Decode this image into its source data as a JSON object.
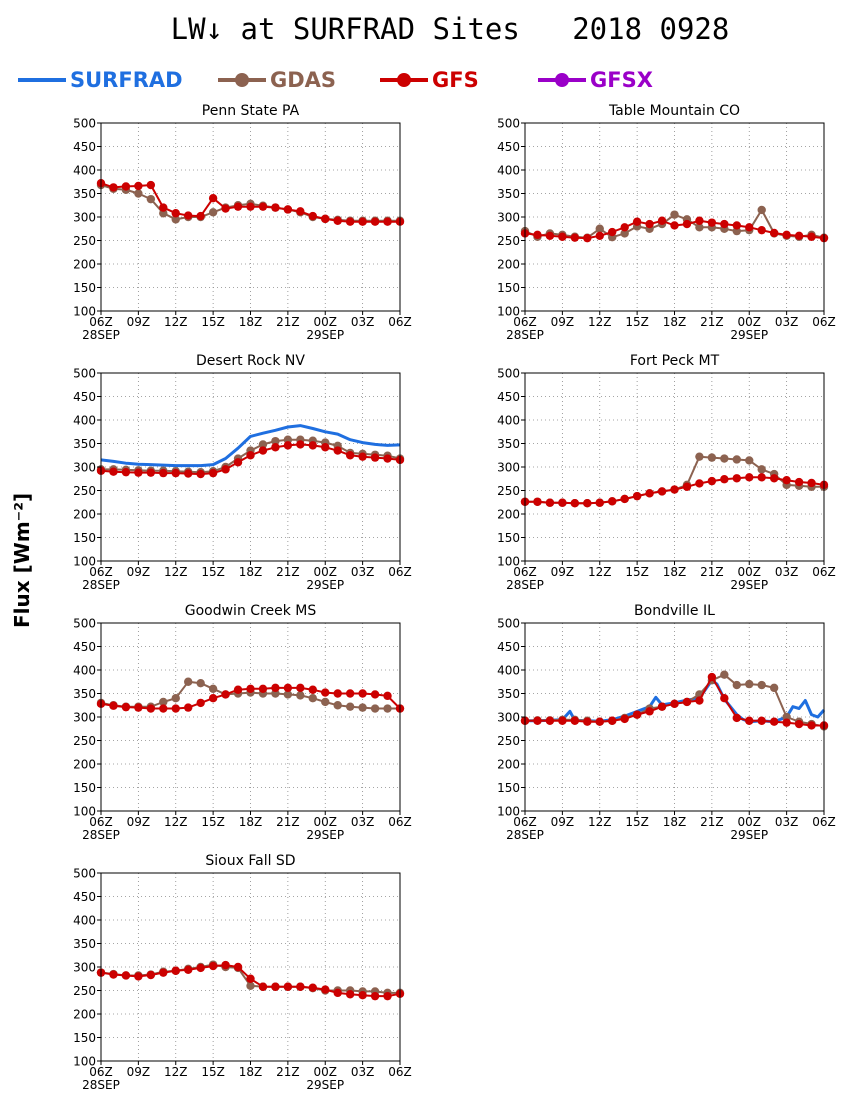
{
  "title": "LW↓ at SURFRAD Sites   2018 0928",
  "ylabel": "Flux [Wm⁻²]",
  "legend": [
    {
      "name": "SURFRAD",
      "color": "#1f6fe0",
      "marker": false
    },
    {
      "name": "GDAS",
      "color": "#8c6250",
      "marker": true
    },
    {
      "name": "GFS",
      "color": "#cc0000",
      "marker": true
    },
    {
      "name": "GFSX",
      "color": "#9a00c8",
      "marker": true
    }
  ],
  "colors": {
    "SURFRAD": "#1f6fe0",
    "GDAS": "#8c6250",
    "GFS": "#cc0000",
    "GFSX": "#9a00c8"
  },
  "axis": {
    "ylim": [
      100,
      500
    ],
    "yticks": [
      100,
      150,
      200,
      250,
      300,
      350,
      400,
      450,
      500
    ],
    "xlim": [
      0,
      24
    ],
    "xtick_hours": [
      0,
      3,
      6,
      9,
      12,
      15,
      18,
      21,
      24
    ],
    "xtick_labels": [
      "06Z",
      "09Z",
      "12Z",
      "15Z",
      "18Z",
      "21Z",
      "00Z",
      "03Z",
      "06Z"
    ],
    "date_labels": [
      {
        "hour": 0,
        "text": "28SEP"
      },
      {
        "hour": 18,
        "text": "29SEP"
      }
    ],
    "grid": true
  },
  "chart_data": [
    {
      "type": "line",
      "title": "Penn State PA",
      "series": [
        {
          "name": "SURFRAD",
          "x": [],
          "values": []
        },
        {
          "name": "GDAS",
          "x": [
            0,
            1,
            2,
            3,
            4,
            5,
            6,
            7,
            8,
            9,
            10,
            11,
            12,
            13,
            14,
            15,
            16,
            17,
            18,
            19,
            20,
            21,
            22,
            23,
            24
          ],
          "values": [
            368,
            360,
            358,
            350,
            338,
            308,
            295,
            300,
            300,
            310,
            320,
            325,
            328,
            324,
            320,
            316,
            310,
            300,
            296,
            294,
            292,
            292,
            292,
            292,
            292
          ]
        },
        {
          "name": "GFS",
          "x": [
            0,
            1,
            2,
            3,
            4,
            5,
            6,
            7,
            8,
            9,
            10,
            11,
            12,
            13,
            14,
            15,
            16,
            17,
            18,
            19,
            20,
            21,
            22,
            23,
            24
          ],
          "values": [
            372,
            363,
            365,
            366,
            368,
            320,
            308,
            303,
            302,
            340,
            318,
            322,
            322,
            322,
            320,
            316,
            312,
            302,
            296,
            292,
            290,
            290,
            290,
            290,
            290
          ]
        }
      ]
    },
    {
      "type": "line",
      "title": "Table Mountain CO",
      "series": [
        {
          "name": "SURFRAD",
          "x": [],
          "values": []
        },
        {
          "name": "GDAS",
          "x": [
            0,
            1,
            2,
            3,
            4,
            5,
            6,
            7,
            8,
            9,
            10,
            11,
            12,
            13,
            14,
            15,
            16,
            17,
            18,
            19,
            20,
            21,
            22,
            23,
            24
          ],
          "values": [
            270,
            258,
            265,
            262,
            258,
            256,
            275,
            257,
            265,
            280,
            275,
            285,
            305,
            295,
            278,
            278,
            275,
            270,
            272,
            315,
            265,
            260,
            258,
            262,
            256
          ]
        },
        {
          "name": "GFS",
          "x": [
            0,
            1,
            2,
            3,
            4,
            5,
            6,
            7,
            8,
            9,
            10,
            11,
            12,
            13,
            14,
            15,
            16,
            17,
            18,
            19,
            20,
            21,
            22,
            23,
            24
          ],
          "values": [
            265,
            262,
            260,
            258,
            256,
            255,
            260,
            268,
            278,
            290,
            285,
            292,
            282,
            285,
            292,
            288,
            285,
            282,
            278,
            272,
            266,
            262,
            260,
            258,
            255
          ]
        }
      ]
    },
    {
      "type": "line",
      "title": "Desert Rock NV",
      "series": [
        {
          "name": "SURFRAD",
          "x": [
            0,
            1,
            2,
            3,
            4,
            5,
            6,
            7,
            8,
            9,
            10,
            11,
            12,
            13,
            14,
            15,
            16,
            17,
            18,
            19,
            20,
            21,
            22,
            23,
            24
          ],
          "values": [
            315,
            312,
            308,
            306,
            305,
            304,
            303,
            303,
            303,
            305,
            318,
            340,
            365,
            372,
            378,
            385,
            388,
            382,
            375,
            370,
            358,
            352,
            348,
            346,
            347
          ]
        },
        {
          "name": "GDAS",
          "x": [
            0,
            1,
            2,
            3,
            4,
            5,
            6,
            7,
            8,
            9,
            10,
            11,
            12,
            13,
            14,
            15,
            16,
            17,
            18,
            19,
            20,
            21,
            22,
            23,
            24
          ],
          "values": [
            295,
            295,
            294,
            293,
            292,
            292,
            291,
            290,
            289,
            291,
            300,
            318,
            335,
            348,
            355,
            358,
            358,
            356,
            352,
            345,
            330,
            328,
            326,
            324,
            318
          ]
        },
        {
          "name": "GFS",
          "x": [
            0,
            1,
            2,
            3,
            4,
            5,
            6,
            7,
            8,
            9,
            10,
            11,
            12,
            13,
            14,
            15,
            16,
            17,
            18,
            19,
            20,
            21,
            22,
            23,
            24
          ],
          "values": [
            292,
            290,
            289,
            288,
            288,
            287,
            287,
            286,
            285,
            287,
            295,
            310,
            325,
            335,
            342,
            346,
            348,
            346,
            342,
            335,
            325,
            322,
            320,
            318,
            315
          ]
        }
      ]
    },
    {
      "type": "line",
      "title": "Fort Peck MT",
      "series": [
        {
          "name": "SURFRAD",
          "x": [],
          "values": []
        },
        {
          "name": "GDAS",
          "x": [
            0,
            1,
            2,
            3,
            4,
            5,
            6,
            7,
            8,
            9,
            10,
            11,
            12,
            13,
            14,
            15,
            16,
            17,
            18,
            19,
            20,
            21,
            22,
            23,
            24
          ],
          "values": [
            226,
            226,
            224,
            224,
            223,
            223,
            224,
            227,
            232,
            238,
            244,
            248,
            252,
            262,
            322,
            320,
            318,
            316,
            314,
            295,
            285,
            262,
            260,
            258,
            258
          ]
        },
        {
          "name": "GFS",
          "x": [
            0,
            1,
            2,
            3,
            4,
            5,
            6,
            7,
            8,
            9,
            10,
            11,
            12,
            13,
            14,
            15,
            16,
            17,
            18,
            19,
            20,
            21,
            22,
            23,
            24
          ],
          "values": [
            226,
            226,
            224,
            224,
            223,
            223,
            224,
            227,
            232,
            238,
            244,
            248,
            252,
            258,
            265,
            270,
            274,
            276,
            278,
            278,
            276,
            272,
            268,
            266,
            262
          ]
        }
      ]
    },
    {
      "type": "line",
      "title": "Goodwin Creek MS",
      "series": [
        {
          "name": "SURFRAD",
          "x": [],
          "values": []
        },
        {
          "name": "GDAS",
          "x": [
            0,
            1,
            2,
            3,
            4,
            5,
            6,
            7,
            8,
            9,
            10,
            11,
            12,
            13,
            14,
            15,
            16,
            17,
            18,
            19,
            20,
            21,
            22,
            23,
            24
          ],
          "values": [
            330,
            325,
            322,
            322,
            322,
            332,
            340,
            375,
            372,
            360,
            348,
            350,
            352,
            350,
            350,
            348,
            346,
            340,
            332,
            325,
            322,
            320,
            318,
            318,
            318
          ]
        },
        {
          "name": "GFS",
          "x": [
            0,
            1,
            2,
            3,
            4,
            5,
            6,
            7,
            8,
            9,
            10,
            11,
            12,
            13,
            14,
            15,
            16,
            17,
            18,
            19,
            20,
            21,
            22,
            23,
            24
          ],
          "values": [
            328,
            324,
            321,
            320,
            318,
            318,
            318,
            320,
            330,
            340,
            348,
            358,
            360,
            360,
            362,
            362,
            362,
            358,
            352,
            350,
            350,
            350,
            348,
            345,
            318
          ]
        }
      ]
    },
    {
      "type": "line",
      "title": "Bondville IL",
      "series": [
        {
          "name": "SURFRAD",
          "x": [
            0,
            1,
            2,
            3,
            3.6,
            4,
            5,
            6,
            7,
            8,
            9,
            10,
            10.5,
            11,
            12,
            13,
            14,
            15,
            15.4,
            16,
            17,
            17.5,
            18,
            19,
            20,
            21,
            21.5,
            22,
            22.5,
            23,
            23.5,
            24
          ],
          "values": [
            292,
            292,
            293,
            294,
            312,
            293,
            292,
            291,
            294,
            302,
            312,
            322,
            342,
            326,
            330,
            336,
            340,
            378,
            370,
            338,
            305,
            295,
            290,
            292,
            290,
            300,
            322,
            318,
            335,
            305,
            300,
            315
          ]
        },
        {
          "name": "GDAS",
          "x": [
            0,
            1,
            2,
            3,
            4,
            5,
            6,
            7,
            8,
            9,
            10,
            11,
            12,
            13,
            14,
            15,
            16,
            17,
            18,
            19,
            20,
            21,
            22,
            23,
            24
          ],
          "values": [
            292,
            293,
            293,
            294,
            294,
            292,
            290,
            292,
            298,
            305,
            318,
            322,
            328,
            332,
            348,
            378,
            390,
            368,
            370,
            368,
            362,
            300,
            290,
            285,
            280
          ]
        },
        {
          "name": "GFS",
          "x": [
            0,
            1,
            2,
            3,
            4,
            5,
            6,
            7,
            8,
            9,
            10,
            11,
            12,
            13,
            14,
            15,
            16,
            17,
            18,
            19,
            20,
            21,
            22,
            23,
            24
          ],
          "values": [
            292,
            292,
            292,
            292,
            292,
            290,
            290,
            292,
            296,
            305,
            312,
            322,
            328,
            332,
            335,
            385,
            340,
            298,
            292,
            292,
            290,
            288,
            285,
            282,
            282
          ]
        }
      ]
    },
    {
      "type": "line",
      "title": "Sioux Fall SD",
      "series": [
        {
          "name": "SURFRAD",
          "x": [],
          "values": []
        },
        {
          "name": "GDAS",
          "x": [
            0,
            1,
            2,
            3,
            4,
            5,
            6,
            7,
            8,
            9,
            10,
            11,
            12,
            13,
            14,
            15,
            16,
            17,
            18,
            19,
            20,
            21,
            22,
            23,
            24
          ],
          "values": [
            288,
            285,
            282,
            282,
            284,
            290,
            292,
            296,
            300,
            305,
            300,
            298,
            260,
            258,
            258,
            258,
            258,
            255,
            250,
            250,
            250,
            248,
            248,
            245,
            245
          ]
        },
        {
          "name": "GFS",
          "x": [
            0,
            1,
            2,
            3,
            4,
            5,
            6,
            7,
            8,
            9,
            10,
            11,
            12,
            13,
            14,
            15,
            16,
            17,
            18,
            19,
            20,
            21,
            22,
            23,
            24
          ],
          "values": [
            288,
            284,
            282,
            280,
            283,
            288,
            292,
            294,
            298,
            302,
            304,
            300,
            275,
            258,
            258,
            258,
            258,
            256,
            252,
            245,
            242,
            240,
            238,
            238,
            243
          ]
        }
      ]
    }
  ]
}
